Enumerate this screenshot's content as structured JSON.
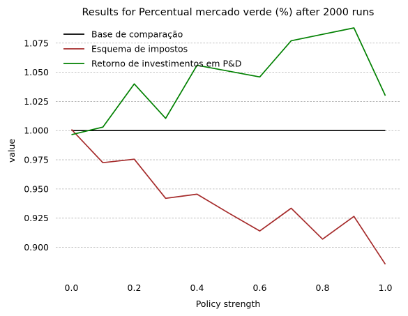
{
  "chart_data": {
    "type": "line",
    "title": "Results for Percentual mercado verde (%) after 2000 runs",
    "xlabel": "Policy strength",
    "ylabel": "value",
    "xlim": [
      -0.05,
      1.05
    ],
    "ylim": [
      0.877,
      1.094
    ],
    "xticks": [
      0.0,
      0.2,
      0.4,
      0.6,
      0.8,
      1.0
    ],
    "xtick_labels": [
      "0.0",
      "0.2",
      "0.4",
      "0.6",
      "0.8",
      "1.0"
    ],
    "yticks": [
      0.9,
      0.925,
      0.95,
      0.975,
      1.0,
      1.025,
      1.05,
      1.075
    ],
    "ytick_labels": [
      "0.900",
      "0.925",
      "0.950",
      "0.975",
      "1.000",
      "1.025",
      "1.050",
      "1.075"
    ],
    "grid": "horizontal, dashed",
    "legend_position": "top-left",
    "series": [
      {
        "name": "Base de comparação",
        "color": "#000000",
        "x": [
          0.0,
          1.0
        ],
        "values": [
          1.0,
          1.0
        ]
      },
      {
        "name": "Esquema de impostos",
        "color": "#a52a2a",
        "x": [
          0.0,
          0.1,
          0.2,
          0.3,
          0.4,
          0.5,
          0.6,
          0.7,
          0.8,
          0.9,
          1.0
        ],
        "values": [
          1.001,
          0.9725,
          0.9755,
          0.942,
          0.9455,
          0.9295,
          0.914,
          0.9335,
          0.907,
          0.9265,
          0.8855
        ]
      },
      {
        "name": "Retorno de investimentos em P&D",
        "color": "#008000",
        "x": [
          0.0,
          0.1,
          0.2,
          0.3,
          0.4,
          0.5,
          0.6,
          0.7,
          0.8,
          0.9,
          1.0
        ],
        "values": [
          0.9965,
          1.003,
          1.04,
          1.0105,
          1.056,
          1.051,
          1.046,
          1.077,
          1.0825,
          1.088,
          1.03
        ]
      }
    ]
  }
}
